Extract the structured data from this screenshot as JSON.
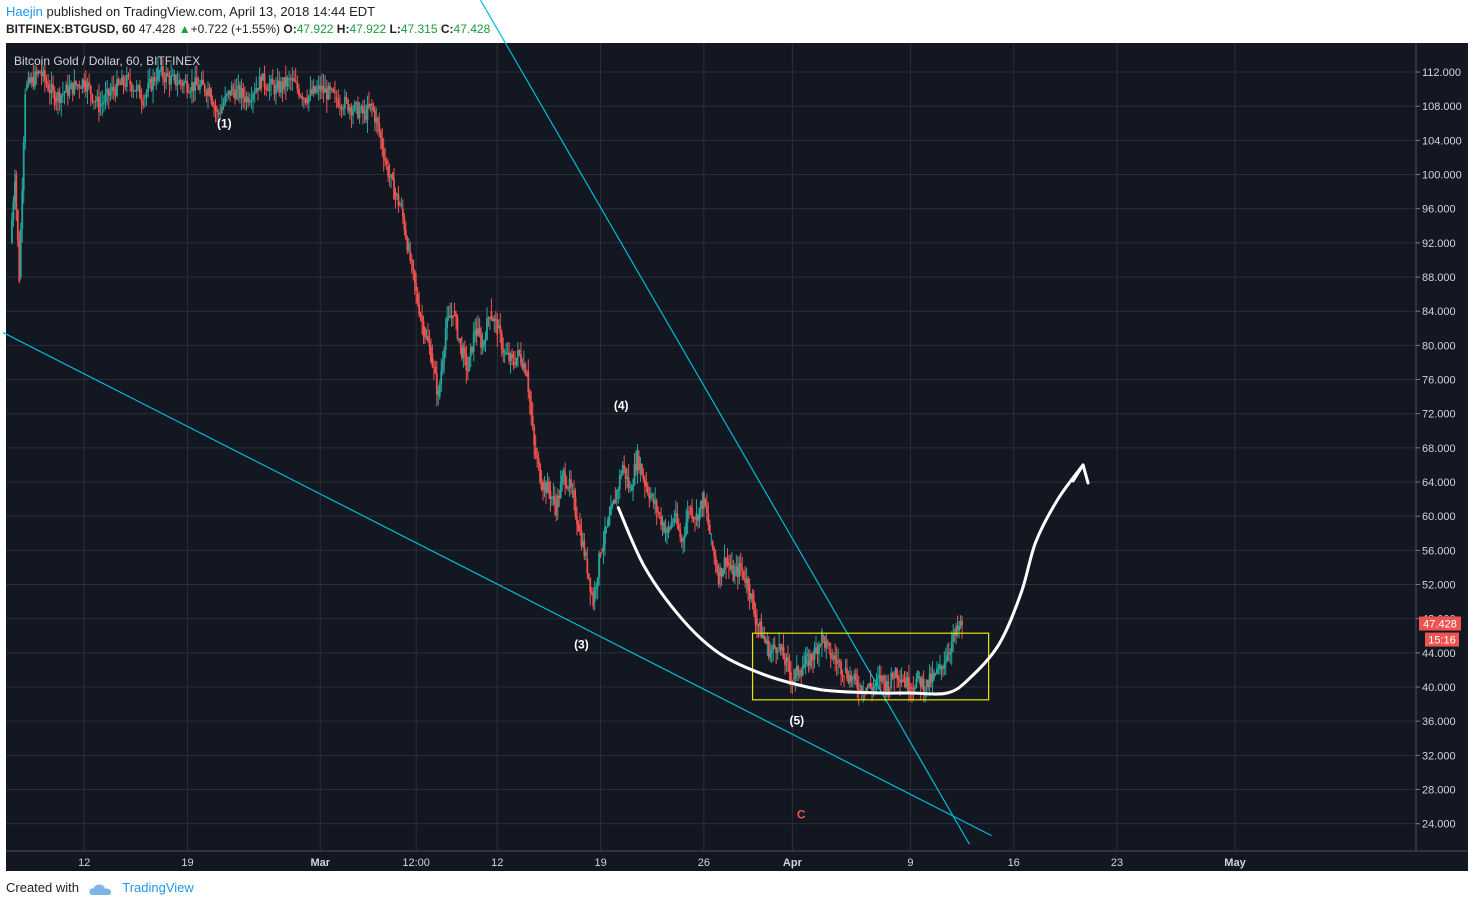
{
  "header": {
    "author": "Haejin",
    "published_text": "published on TradingView.com, April 13, 2018 14:44 EDT",
    "symbol": "BITFINEX:BTGUSD, 60",
    "last": "47.428",
    "change": "+0.722 (+1.55%)",
    "open_label": "O:",
    "open": "47.922",
    "high_label": "H:",
    "high": "47.922",
    "low_label": "L:",
    "low": "47.315",
    "close_label": "C:",
    "close": "47.428"
  },
  "footer": {
    "created_with": "Created with",
    "brand": "TradingView"
  },
  "colors": {
    "background": "#131722",
    "grid": "#2a2e39",
    "up_candle": "#26a69a",
    "down_candle": "#ef5350",
    "trendline": "#00bcd4",
    "curve": "#ffffff",
    "box": "#e6e600",
    "price_tag": "#ef5350",
    "wave_c_label": "#ef5350"
  },
  "chart_data": {
    "type": "candlestick",
    "title": "Bitcoin Gold / Dollar, 60, BITFINEX",
    "ylim": [
      20.8,
      115.4
    ],
    "y_ticks": [
      "112.000",
      "108.000",
      "104.000",
      "100.000",
      "96.000",
      "92.000",
      "88.000",
      "84.000",
      "80.000",
      "76.000",
      "72.000",
      "68.000",
      "64.000",
      "60.000",
      "56.000",
      "52.000",
      "48.000",
      "44.000",
      "40.000",
      "36.000",
      "32.000",
      "28.000",
      "24.000"
    ],
    "x_ticks": [
      {
        "label": "12",
        "day": 12
      },
      {
        "label": "19",
        "day": 19
      },
      {
        "label": "Mar",
        "day": 28
      },
      {
        "label": "12:00",
        "day": 34.5
      },
      {
        "label": "12",
        "day": 40
      },
      {
        "label": "19",
        "day": 47
      },
      {
        "label": "26",
        "day": 54
      },
      {
        "label": "Apr",
        "day": 60
      },
      {
        "label": "9",
        "day": 68
      },
      {
        "label": "16",
        "day": 75
      },
      {
        "label": "23",
        "day": 82
      },
      {
        "label": "May",
        "day": 90
      }
    ],
    "price_path": [
      [
        7,
        92
      ],
      [
        7.3,
        100
      ],
      [
        7.6,
        88
      ],
      [
        8,
        110
      ],
      [
        9,
        112
      ],
      [
        10,
        109
      ],
      [
        11,
        110
      ],
      [
        12,
        111
      ],
      [
        13,
        108
      ],
      [
        14,
        110
      ],
      [
        15,
        111
      ],
      [
        16,
        109
      ],
      [
        17,
        112
      ],
      [
        18,
        111
      ],
      [
        20.5,
        110
      ],
      [
        21,
        107
      ],
      [
        22,
        110
      ],
      [
        23,
        109
      ],
      [
        24,
        111
      ],
      [
        25,
        110
      ],
      [
        26,
        111
      ],
      [
        27,
        109
      ],
      [
        28,
        110
      ],
      [
        29,
        109
      ],
      [
        30,
        108
      ],
      [
        31,
        107
      ],
      [
        31.5,
        108
      ],
      [
        32,
        105
      ],
      [
        32.5,
        101
      ],
      [
        33,
        98
      ],
      [
        33.5,
        96
      ],
      [
        34,
        91
      ],
      [
        34.5,
        86
      ],
      [
        35,
        82
      ],
      [
        35.5,
        79
      ],
      [
        36,
        74
      ],
      [
        36.5,
        82
      ],
      [
        37,
        84
      ],
      [
        37.5,
        80
      ],
      [
        38,
        77
      ],
      [
        38.5,
        82
      ],
      [
        39,
        80
      ],
      [
        39.5,
        84
      ],
      [
        40,
        82
      ],
      [
        40.5,
        79
      ],
      [
        41,
        78
      ],
      [
        41.5,
        79
      ],
      [
        42,
        77
      ],
      [
        42.5,
        68
      ],
      [
        43,
        64
      ],
      [
        43.5,
        63
      ],
      [
        44,
        61
      ],
      [
        44.5,
        65
      ],
      [
        45,
        63
      ],
      [
        45.5,
        59
      ],
      [
        46,
        55
      ],
      [
        46.5,
        50
      ],
      [
        47,
        56
      ],
      [
        47.5,
        59
      ],
      [
        48,
        62
      ],
      [
        48.5,
        66
      ],
      [
        49,
        63
      ],
      [
        49.5,
        67
      ],
      [
        50,
        64
      ],
      [
        50.5,
        62
      ],
      [
        51,
        60
      ],
      [
        51.5,
        58
      ],
      [
        52,
        60
      ],
      [
        52.5,
        57
      ],
      [
        53,
        61
      ],
      [
        53.5,
        60
      ],
      [
        54,
        62
      ],
      [
        54.5,
        57
      ],
      [
        55,
        53
      ],
      [
        55.5,
        55
      ],
      [
        56,
        53
      ],
      [
        56.5,
        54
      ],
      [
        57,
        52
      ],
      [
        57.5,
        48
      ],
      [
        58,
        46
      ],
      [
        58.5,
        44
      ],
      [
        59,
        45
      ],
      [
        59.5,
        43
      ],
      [
        60,
        41
      ],
      [
        60.5,
        42
      ],
      [
        61,
        43
      ],
      [
        61.5,
        44
      ],
      [
        62,
        46
      ],
      [
        62.5,
        44
      ],
      [
        63,
        43
      ],
      [
        63.5,
        42
      ],
      [
        64,
        41
      ],
      [
        64.5,
        40
      ],
      [
        65,
        40
      ],
      [
        65.5,
        40
      ],
      [
        66,
        41
      ],
      [
        66.5,
        40
      ],
      [
        67,
        42
      ],
      [
        67.5,
        41
      ],
      [
        68,
        40
      ],
      [
        68.5,
        41
      ],
      [
        69,
        40
      ],
      [
        69.5,
        41
      ],
      [
        70,
        42
      ],
      [
        70.5,
        44
      ],
      [
        71,
        46
      ],
      [
        71.5,
        47.4
      ]
    ],
    "wave_labels": [
      {
        "text": "(1)",
        "day": 21.5,
        "price": 105.5
      },
      {
        "text": "(3)",
        "day": 45.7,
        "price": 44.5
      },
      {
        "text": "(4)",
        "day": 48.4,
        "price": 72.5
      },
      {
        "text": "(5)",
        "day": 60.3,
        "price": 35.6
      },
      {
        "text": "C",
        "day": 60.6,
        "price": 24.6
      }
    ],
    "trendlines": [
      {
        "from": [
          6.5,
          81.5
        ],
        "to": [
          73.5,
          22.6
        ]
      },
      {
        "from": [
          38.5,
          121.5
        ],
        "to": [
          72,
          21.6
        ]
      }
    ],
    "curve": [
      [
        48.2,
        61
      ],
      [
        50,
        54
      ],
      [
        52.5,
        48
      ],
      [
        55,
        44
      ],
      [
        58,
        41.5
      ],
      [
        61,
        40
      ],
      [
        63,
        39.5
      ],
      [
        66,
        39.3
      ],
      [
        68,
        39.3
      ],
      [
        70.5,
        39.3
      ],
      [
        72,
        41
      ],
      [
        74,
        45
      ],
      [
        75.5,
        51
      ],
      [
        76.5,
        57
      ],
      [
        78,
        62
      ],
      [
        79.7,
        66
      ]
    ],
    "box": {
      "x0": 57.3,
      "x1": 73.3,
      "y0": 38.5,
      "y1": 46.3
    },
    "last_price_tag": "47.428",
    "countdown_tag": "15:16"
  }
}
